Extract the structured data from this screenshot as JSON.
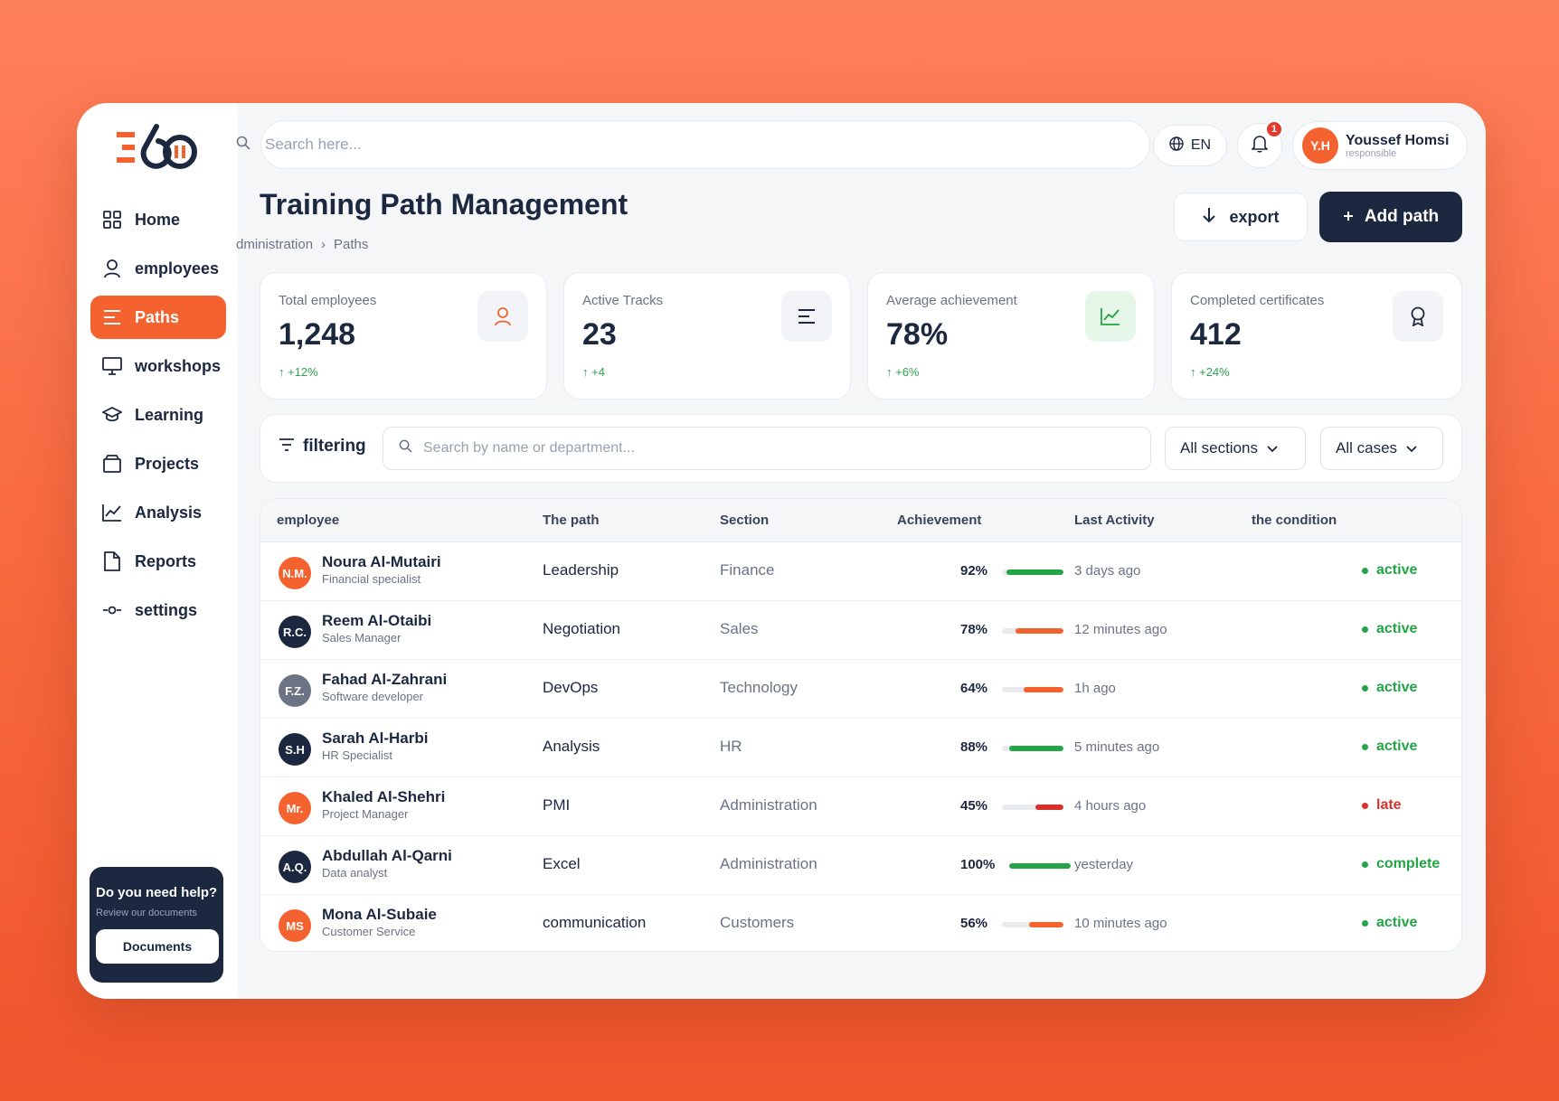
{
  "brand": {
    "logo_text": "360"
  },
  "sidebar": {
    "items": [
      {
        "label": "Home",
        "icon": "grid-icon"
      },
      {
        "label": "employees",
        "icon": "user-icon"
      },
      {
        "label": "Paths",
        "icon": "lines-icon",
        "active": true
      },
      {
        "label": "workshops",
        "icon": "monitor-icon"
      },
      {
        "label": "Learning",
        "icon": "graduation-cap-icon"
      },
      {
        "label": "Projects",
        "icon": "briefcase-icon"
      },
      {
        "label": "Analysis",
        "icon": "chart-line-icon"
      },
      {
        "label": "Reports",
        "icon": "document-icon"
      },
      {
        "label": "settings",
        "icon": "settings-icon"
      }
    ],
    "help": {
      "title": "Do you need help?",
      "subtitle": "Review our documents",
      "button": "Documents"
    }
  },
  "topbar": {
    "search_placeholder": "Search here...",
    "language": "EN",
    "notifications_count": "1",
    "user": {
      "initials": "Y.H",
      "name": "Youssef Homsi",
      "role": "responsible"
    }
  },
  "header": {
    "title": "Training Path Management",
    "breadcrumb": [
      "dministration",
      "›",
      "Paths"
    ],
    "export_label": "export",
    "add_label": "Add path"
  },
  "stats": [
    {
      "label": "Total employees",
      "value": "1,248",
      "delta": "↑ +12%",
      "icon": "user-icon"
    },
    {
      "label": "Active Tracks",
      "value": "23",
      "delta": "↑ +4",
      "icon": "lines-icon"
    },
    {
      "label": "Average achievement",
      "value": "78%",
      "delta": "↑ +6%",
      "icon": "chart-line-icon"
    },
    {
      "label": "Completed certificates",
      "value": "412",
      "delta": "↑ +24%",
      "icon": "award-icon"
    }
  ],
  "filters": {
    "label": "filtering",
    "search_placeholder": "Search by name or department...",
    "sections": "All sections",
    "cases": "All cases"
  },
  "table": {
    "headers": [
      "employee",
      "The path",
      "Section",
      "Achievement",
      "Last Activity",
      "the condition"
    ],
    "rows": [
      {
        "initials": "N.M.",
        "avatar_color": "#f4622f",
        "name": "Noura Al-Mutairi",
        "role": "Financial specialist",
        "path": "Leadership",
        "section": "Finance",
        "achievement": 92,
        "achievement_label": "92%",
        "bar_color": "#22a447",
        "last": "3 days ago",
        "status": "active",
        "status_color": "#22a447"
      },
      {
        "initials": "R.C.",
        "avatar_color": "#1c2740",
        "name": "Reem Al-Otaibi",
        "role": "Sales Manager",
        "path": "Negotiation",
        "section": "Sales",
        "achievement": 78,
        "achievement_label": "78%",
        "bar_color": "#f4622f",
        "last": "12 minutes ago",
        "status": "active",
        "status_color": "#22a447"
      },
      {
        "initials": "F.Z.",
        "avatar_color": "#6b7385",
        "name": "Fahad Al-Zahrani",
        "role": "Software developer",
        "path": "DevOps",
        "section": "Technology",
        "achievement": 64,
        "achievement_label": "64%",
        "bar_color": "#f4622f",
        "last": "1h ago",
        "status": "active",
        "status_color": "#22a447"
      },
      {
        "initials": "S.H",
        "avatar_color": "#1c2740",
        "name": "Sarah Al-Harbi",
        "role": "HR Specialist",
        "path": "Analysis",
        "section": "HR",
        "achievement": 88,
        "achievement_label": "88%",
        "bar_color": "#22a447",
        "last": "5 minutes ago",
        "status": "active",
        "status_color": "#22a447"
      },
      {
        "initials": "Mr.",
        "avatar_color": "#f4622f",
        "name": "Khaled Al-Shehri",
        "role": "Project Manager",
        "path": "PMI",
        "section": "Administration",
        "achievement": 45,
        "achievement_label": "45%",
        "bar_color": "#d9302a",
        "last": "4 hours ago",
        "status": "late",
        "status_color": "#d9302a"
      },
      {
        "initials": "A.Q.",
        "avatar_color": "#1c2740",
        "name": "Abdullah Al-Qarni",
        "role": "Data analyst",
        "path": "Excel",
        "section": "Administration",
        "achievement": 100,
        "achievement_label": "100%",
        "bar_color": "#22a447",
        "last": "yesterday",
        "status": "complete",
        "status_color": "#22a447"
      },
      {
        "initials": "MS",
        "avatar_color": "#f4622f",
        "name": "Mona Al-Subaie",
        "role": "Customer Service",
        "path": "communication",
        "section": "Customers",
        "achievement": 56,
        "achievement_label": "56%",
        "bar_color": "#f4622f",
        "last": "10 minutes ago",
        "status": "active",
        "status_color": "#22a447"
      }
    ]
  }
}
